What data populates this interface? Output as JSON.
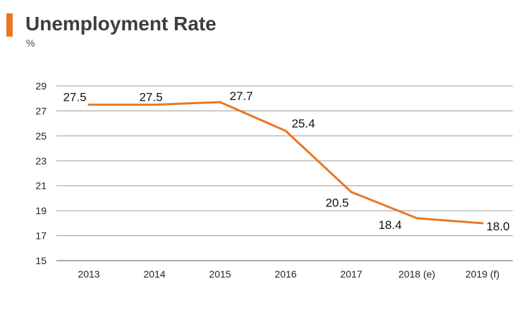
{
  "header": {
    "title": "Unemployment Rate",
    "unit": "%"
  },
  "colors": {
    "accent": "#E87722",
    "line": "#E87722",
    "grid": "#9a9a9a"
  },
  "chart_data": {
    "type": "line",
    "title": "Unemployment Rate",
    "subtitle": "%",
    "xlabel": "",
    "ylabel": "",
    "categories": [
      "2013",
      "2014",
      "2015",
      "2016",
      "2017",
      "2018 (e)",
      "2019 (f)"
    ],
    "series": [
      {
        "values": [
          27.5,
          27.5,
          27.7,
          25.4,
          20.5,
          18.4,
          18.0
        ]
      }
    ],
    "data_labels": [
      "27.5",
      "27.5",
      "27.7",
      "25.4",
      "20.5",
      "18.4",
      "18.0"
    ],
    "ylim": [
      15,
      29
    ],
    "yticks": [
      15,
      17,
      19,
      21,
      23,
      25,
      27,
      29
    ],
    "grid": true,
    "legend": "none"
  }
}
